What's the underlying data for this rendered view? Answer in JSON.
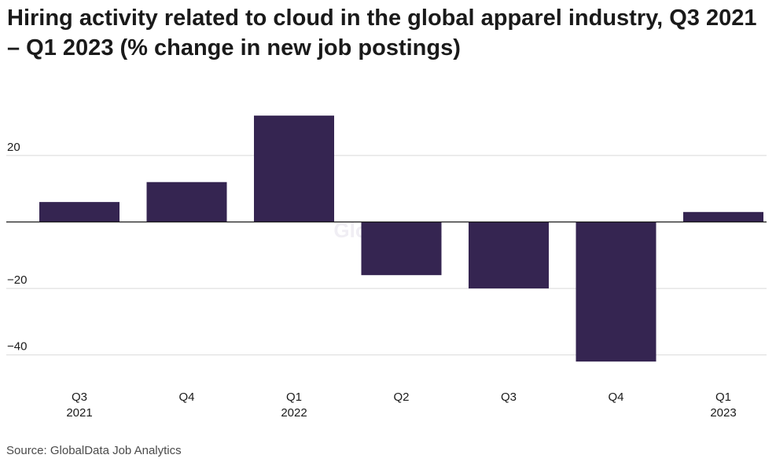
{
  "title": "Hiring activity related to cloud in the global apparel industry, Q3 2021 – Q1 2023 (% change in new job postings)",
  "source": "Source: GlobalData Job Analytics",
  "watermark": "GlobalData",
  "colors": {
    "bar": "#352551",
    "grid": "#d9d9d9",
    "axis": "#1a1a1a",
    "text": "#1a1a1a"
  },
  "chart_data": {
    "type": "bar",
    "categories": [
      "Q3 2021",
      "Q4",
      "Q1 2022",
      "Q2",
      "Q3",
      "Q4",
      "Q1 2023"
    ],
    "category_labels": [
      [
        "Q3",
        "2021"
      ],
      [
        "Q4"
      ],
      [
        "Q1",
        "2022"
      ],
      [
        "Q2"
      ],
      [
        "Q3"
      ],
      [
        "Q4"
      ],
      [
        "Q1",
        "2023"
      ]
    ],
    "values": [
      6,
      12,
      32,
      -16,
      -20,
      -42,
      3
    ],
    "yticks": [
      20,
      -20,
      -40
    ],
    "ytick_labels": [
      "20",
      "−20",
      "−40"
    ],
    "ylim": [
      -46,
      36
    ],
    "xlabel": "",
    "ylabel": "",
    "grid": true
  }
}
